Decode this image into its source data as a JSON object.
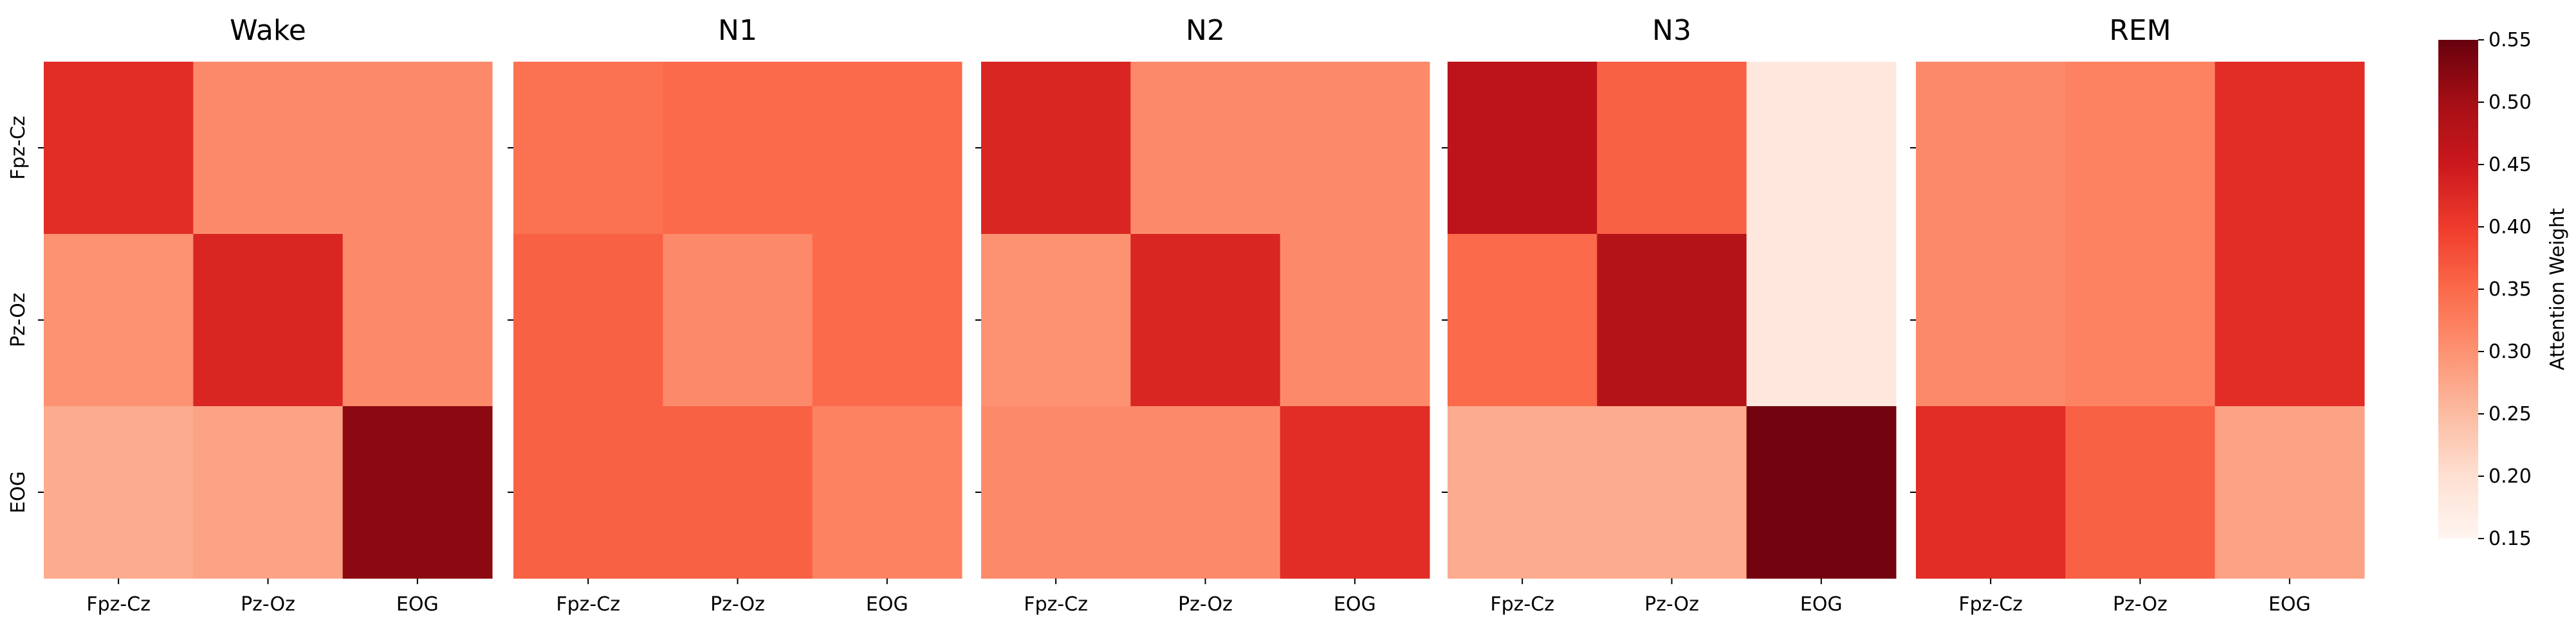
{
  "chart_data": {
    "type": "heatmap",
    "rows": [
      "Fpz-Cz",
      "Pz-Oz",
      "EOG"
    ],
    "columns": [
      "Fpz-Cz",
      "Pz-Oz",
      "EOG"
    ],
    "panels": [
      {
        "title": "Wake",
        "values": [
          [
            0.42,
            0.31,
            0.31
          ],
          [
            0.3,
            0.43,
            0.31
          ],
          [
            0.27,
            0.28,
            0.52
          ]
        ]
      },
      {
        "title": "N1",
        "values": [
          [
            0.34,
            0.35,
            0.35
          ],
          [
            0.36,
            0.31,
            0.35
          ],
          [
            0.36,
            0.36,
            0.32
          ]
        ]
      },
      {
        "title": "N2",
        "values": [
          [
            0.43,
            0.31,
            0.31
          ],
          [
            0.3,
            0.43,
            0.31
          ],
          [
            0.31,
            0.31,
            0.42
          ]
        ]
      },
      {
        "title": "N3",
        "values": [
          [
            0.47,
            0.36,
            0.18
          ],
          [
            0.35,
            0.48,
            0.18
          ],
          [
            0.27,
            0.27,
            0.54
          ]
        ]
      },
      {
        "title": "REM",
        "values": [
          [
            0.31,
            0.32,
            0.42
          ],
          [
            0.31,
            0.32,
            0.42
          ],
          [
            0.42,
            0.36,
            0.28
          ]
        ]
      }
    ],
    "colorbar": {
      "label": "Attention Weight",
      "range": [
        0.15,
        0.55
      ],
      "ticks": [
        "0.15",
        "0.20",
        "0.25",
        "0.30",
        "0.35",
        "0.40",
        "0.45",
        "0.50",
        "0.55"
      ],
      "colormap": "Reds"
    }
  }
}
